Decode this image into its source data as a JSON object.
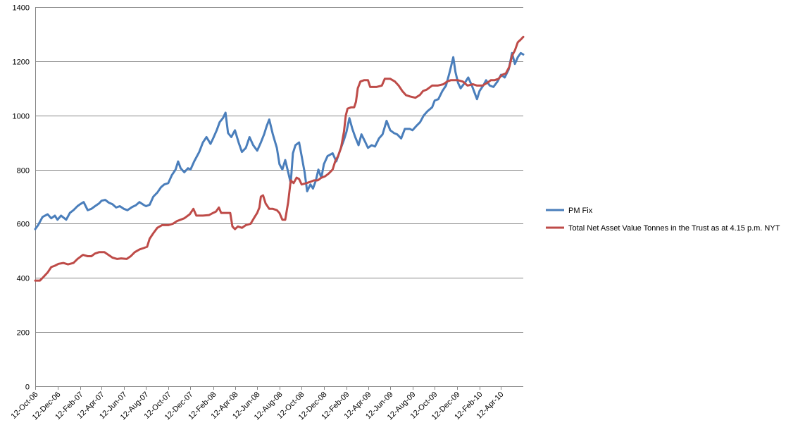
{
  "chart_data": {
    "type": "line",
    "title": "",
    "xlabel": "",
    "ylabel": "",
    "ylim": [
      0,
      1400
    ],
    "yticks": [
      0,
      200,
      400,
      600,
      800,
      1000,
      1200,
      1400
    ],
    "xlim": [
      "2006-10-12",
      "2010-06-12"
    ],
    "xticks": [
      "2006-10-12",
      "2006-12-12",
      "2007-02-12",
      "2007-04-12",
      "2007-06-12",
      "2007-08-12",
      "2007-10-12",
      "2007-12-12",
      "2008-02-12",
      "2008-04-12",
      "2008-06-12",
      "2008-08-12",
      "2008-10-12",
      "2008-12-12",
      "2009-02-12",
      "2009-04-12",
      "2009-06-12",
      "2009-08-12",
      "2009-10-12",
      "2009-12-12",
      "2010-02-12",
      "2010-04-12"
    ],
    "xtick_labels": [
      "12-Oct-06",
      "12-Dec-06",
      "12-Feb-07",
      "12-Apr-07",
      "12-Jun-07",
      "12-Aug-07",
      "12-Oct-07",
      "12-Dec-07",
      "12-Feb-08",
      "12-Apr-08",
      "12-Jun-08",
      "12-Aug-08",
      "12-Oct-08",
      "12-Dec-08",
      "12-Feb-09",
      "12-Apr-09",
      "12-Jun-09",
      "12-Aug-09",
      "12-Oct-09",
      "12-Dec-09",
      "12-Feb-10",
      "12-Apr-10"
    ],
    "grid": "horizontal",
    "legend": "right",
    "series": [
      {
        "name": "PM Fix",
        "color": "#4a7ebb",
        "points": [
          [
            "2006-10-12",
            580
          ],
          [
            "2006-10-20",
            595
          ],
          [
            "2006-11-01",
            625
          ],
          [
            "2006-11-15",
            635
          ],
          [
            "2006-11-25",
            620
          ],
          [
            "2006-12-05",
            630
          ],
          [
            "2006-12-12",
            615
          ],
          [
            "2006-12-22",
            630
          ],
          [
            "2007-01-05",
            615
          ],
          [
            "2007-01-15",
            640
          ],
          [
            "2007-01-25",
            650
          ],
          [
            "2007-02-05",
            665
          ],
          [
            "2007-02-12",
            672
          ],
          [
            "2007-02-22",
            680
          ],
          [
            "2007-03-05",
            650
          ],
          [
            "2007-03-15",
            655
          ],
          [
            "2007-03-25",
            665
          ],
          [
            "2007-04-05",
            675
          ],
          [
            "2007-04-12",
            685
          ],
          [
            "2007-04-22",
            688
          ],
          [
            "2007-05-02",
            678
          ],
          [
            "2007-05-12",
            672
          ],
          [
            "2007-05-22",
            660
          ],
          [
            "2007-06-01",
            665
          ],
          [
            "2007-06-12",
            655
          ],
          [
            "2007-06-22",
            650
          ],
          [
            "2007-07-05",
            662
          ],
          [
            "2007-07-15",
            668
          ],
          [
            "2007-07-25",
            680
          ],
          [
            "2007-08-05",
            670
          ],
          [
            "2007-08-12",
            665
          ],
          [
            "2007-08-22",
            670
          ],
          [
            "2007-09-01",
            700
          ],
          [
            "2007-09-12",
            715
          ],
          [
            "2007-09-22",
            735
          ],
          [
            "2007-10-01",
            745
          ],
          [
            "2007-10-12",
            750
          ],
          [
            "2007-10-22",
            780
          ],
          [
            "2007-11-01",
            800
          ],
          [
            "2007-11-08",
            830
          ],
          [
            "2007-11-15",
            805
          ],
          [
            "2007-11-25",
            790
          ],
          [
            "2007-12-05",
            805
          ],
          [
            "2007-12-12",
            800
          ],
          [
            "2007-12-22",
            830
          ],
          [
            "2008-01-05",
            865
          ],
          [
            "2008-01-15",
            900
          ],
          [
            "2008-01-25",
            920
          ],
          [
            "2008-02-05",
            895
          ],
          [
            "2008-02-12",
            915
          ],
          [
            "2008-02-22",
            945
          ],
          [
            "2008-03-01",
            975
          ],
          [
            "2008-03-10",
            990
          ],
          [
            "2008-03-17",
            1010
          ],
          [
            "2008-03-24",
            935
          ],
          [
            "2008-04-02",
            920
          ],
          [
            "2008-04-12",
            945
          ],
          [
            "2008-04-22",
            900
          ],
          [
            "2008-05-01",
            865
          ],
          [
            "2008-05-12",
            880
          ],
          [
            "2008-05-22",
            920
          ],
          [
            "2008-06-01",
            890
          ],
          [
            "2008-06-12",
            870
          ],
          [
            "2008-06-22",
            900
          ],
          [
            "2008-07-01",
            930
          ],
          [
            "2008-07-08",
            960
          ],
          [
            "2008-07-15",
            985
          ],
          [
            "2008-07-25",
            930
          ],
          [
            "2008-08-05",
            880
          ],
          [
            "2008-08-12",
            820
          ],
          [
            "2008-08-20",
            800
          ],
          [
            "2008-08-28",
            835
          ],
          [
            "2008-09-05",
            790
          ],
          [
            "2008-09-12",
            750
          ],
          [
            "2008-09-18",
            860
          ],
          [
            "2008-09-25",
            890
          ],
          [
            "2008-10-05",
            900
          ],
          [
            "2008-10-12",
            850
          ],
          [
            "2008-10-20",
            790
          ],
          [
            "2008-10-27",
            720
          ],
          [
            "2008-11-05",
            745
          ],
          [
            "2008-11-12",
            730
          ],
          [
            "2008-11-20",
            760
          ],
          [
            "2008-11-27",
            800
          ],
          [
            "2008-12-05",
            770
          ],
          [
            "2008-12-12",
            820
          ],
          [
            "2008-12-22",
            850
          ],
          [
            "2009-01-05",
            860
          ],
          [
            "2009-01-15",
            830
          ],
          [
            "2009-01-25",
            870
          ],
          [
            "2009-02-05",
            910
          ],
          [
            "2009-02-12",
            940
          ],
          [
            "2009-02-20",
            990
          ],
          [
            "2009-02-28",
            950
          ],
          [
            "2009-03-08",
            920
          ],
          [
            "2009-03-17",
            890
          ],
          [
            "2009-03-25",
            930
          ],
          [
            "2009-04-05",
            900
          ],
          [
            "2009-04-12",
            880
          ],
          [
            "2009-04-22",
            890
          ],
          [
            "2009-05-01",
            885
          ],
          [
            "2009-05-12",
            915
          ],
          [
            "2009-05-22",
            930
          ],
          [
            "2009-06-02",
            980
          ],
          [
            "2009-06-12",
            945
          ],
          [
            "2009-06-22",
            935
          ],
          [
            "2009-07-01",
            930
          ],
          [
            "2009-07-12",
            915
          ],
          [
            "2009-07-22",
            950
          ],
          [
            "2009-08-05",
            950
          ],
          [
            "2009-08-12",
            945
          ],
          [
            "2009-08-22",
            960
          ],
          [
            "2009-09-02",
            975
          ],
          [
            "2009-09-12",
            1000
          ],
          [
            "2009-09-22",
            1015
          ],
          [
            "2009-10-05",
            1030
          ],
          [
            "2009-10-12",
            1055
          ],
          [
            "2009-10-22",
            1060
          ],
          [
            "2009-11-02",
            1090
          ],
          [
            "2009-11-12",
            1110
          ],
          [
            "2009-11-22",
            1160
          ],
          [
            "2009-12-02",
            1215
          ],
          [
            "2009-12-08",
            1160
          ],
          [
            "2009-12-15",
            1120
          ],
          [
            "2009-12-22",
            1100
          ],
          [
            "2010-01-05",
            1125
          ],
          [
            "2010-01-12",
            1140
          ],
          [
            "2010-01-22",
            1110
          ],
          [
            "2010-02-05",
            1060
          ],
          [
            "2010-02-12",
            1090
          ],
          [
            "2010-02-22",
            1110
          ],
          [
            "2010-03-02",
            1130
          ],
          [
            "2010-03-12",
            1110
          ],
          [
            "2010-03-22",
            1105
          ],
          [
            "2010-04-02",
            1125
          ],
          [
            "2010-04-12",
            1150
          ],
          [
            "2010-04-22",
            1140
          ],
          [
            "2010-05-03",
            1170
          ],
          [
            "2010-05-12",
            1230
          ],
          [
            "2010-05-20",
            1190
          ],
          [
            "2010-05-28",
            1215
          ],
          [
            "2010-06-05",
            1230
          ],
          [
            "2010-06-12",
            1225
          ]
        ]
      },
      {
        "name": "Total Net Asset Value Tonnes in the Trust as at 4.15 p.m. NYT",
        "color": "#be4b48",
        "points": [
          [
            "2006-10-12",
            390
          ],
          [
            "2006-10-25",
            390
          ],
          [
            "2006-11-01",
            400
          ],
          [
            "2006-11-15",
            420
          ],
          [
            "2006-11-25",
            440
          ],
          [
            "2006-12-05",
            445
          ],
          [
            "2006-12-15",
            452
          ],
          [
            "2006-12-28",
            455
          ],
          [
            "2007-01-10",
            450
          ],
          [
            "2007-01-25",
            455
          ],
          [
            "2007-02-05",
            470
          ],
          [
            "2007-02-20",
            485
          ],
          [
            "2007-03-05",
            480
          ],
          [
            "2007-03-15",
            480
          ],
          [
            "2007-03-25",
            490
          ],
          [
            "2007-04-05",
            495
          ],
          [
            "2007-04-20",
            495
          ],
          [
            "2007-05-01",
            485
          ],
          [
            "2007-05-12",
            475
          ],
          [
            "2007-05-25",
            470
          ],
          [
            "2007-06-05",
            472
          ],
          [
            "2007-06-20",
            470
          ],
          [
            "2007-07-01",
            480
          ],
          [
            "2007-07-12",
            495
          ],
          [
            "2007-07-25",
            505
          ],
          [
            "2007-08-05",
            510
          ],
          [
            "2007-08-15",
            515
          ],
          [
            "2007-08-22",
            545
          ],
          [
            "2007-09-01",
            565
          ],
          [
            "2007-09-12",
            585
          ],
          [
            "2007-09-25",
            595
          ],
          [
            "2007-10-12",
            595
          ],
          [
            "2007-10-25",
            600
          ],
          [
            "2007-11-05",
            610
          ],
          [
            "2007-11-15",
            615
          ],
          [
            "2007-11-25",
            620
          ],
          [
            "2007-12-10",
            635
          ],
          [
            "2007-12-20",
            655
          ],
          [
            "2007-12-28",
            630
          ],
          [
            "2008-01-15",
            630
          ],
          [
            "2008-02-01",
            632
          ],
          [
            "2008-02-12",
            640
          ],
          [
            "2008-02-20",
            645
          ],
          [
            "2008-02-28",
            660
          ],
          [
            "2008-03-05",
            640
          ],
          [
            "2008-03-20",
            640
          ],
          [
            "2008-03-30",
            640
          ],
          [
            "2008-04-05",
            590
          ],
          [
            "2008-04-12",
            580
          ],
          [
            "2008-04-20",
            590
          ],
          [
            "2008-05-01",
            585
          ],
          [
            "2008-05-12",
            595
          ],
          [
            "2008-05-25",
            600
          ],
          [
            "2008-06-05",
            625
          ],
          [
            "2008-06-12",
            640
          ],
          [
            "2008-06-18",
            660
          ],
          [
            "2008-06-22",
            700
          ],
          [
            "2008-06-28",
            705
          ],
          [
            "2008-07-05",
            675
          ],
          [
            "2008-07-15",
            655
          ],
          [
            "2008-07-25",
            655
          ],
          [
            "2008-08-05",
            650
          ],
          [
            "2008-08-12",
            640
          ],
          [
            "2008-08-20",
            615
          ],
          [
            "2008-08-28",
            615
          ],
          [
            "2008-09-05",
            680
          ],
          [
            "2008-09-12",
            760
          ],
          [
            "2008-09-20",
            750
          ],
          [
            "2008-09-28",
            770
          ],
          [
            "2008-10-05",
            765
          ],
          [
            "2008-10-12",
            745
          ],
          [
            "2008-10-25",
            750
          ],
          [
            "2008-11-05",
            755
          ],
          [
            "2008-11-15",
            760
          ],
          [
            "2008-11-25",
            760
          ],
          [
            "2008-12-05",
            770
          ],
          [
            "2008-12-15",
            775
          ],
          [
            "2008-12-25",
            785
          ],
          [
            "2009-01-05",
            800
          ],
          [
            "2009-01-12",
            830
          ],
          [
            "2009-01-20",
            850
          ],
          [
            "2009-01-28",
            880
          ],
          [
            "2009-02-05",
            940
          ],
          [
            "2009-02-10",
            1000
          ],
          [
            "2009-02-15",
            1025
          ],
          [
            "2009-02-25",
            1030
          ],
          [
            "2009-03-05",
            1030
          ],
          [
            "2009-03-10",
            1050
          ],
          [
            "2009-03-15",
            1100
          ],
          [
            "2009-03-22",
            1125
          ],
          [
            "2009-04-01",
            1130
          ],
          [
            "2009-04-12",
            1130
          ],
          [
            "2009-04-18",
            1105
          ],
          [
            "2009-05-05",
            1105
          ],
          [
            "2009-05-20",
            1110
          ],
          [
            "2009-05-28",
            1135
          ],
          [
            "2009-06-12",
            1135
          ],
          [
            "2009-06-25",
            1125
          ],
          [
            "2009-07-05",
            1110
          ],
          [
            "2009-07-15",
            1090
          ],
          [
            "2009-07-25",
            1075
          ],
          [
            "2009-08-05",
            1070
          ],
          [
            "2009-08-20",
            1065
          ],
          [
            "2009-09-01",
            1075
          ],
          [
            "2009-09-10",
            1090
          ],
          [
            "2009-09-20",
            1095
          ],
          [
            "2009-10-05",
            1110
          ],
          [
            "2009-10-20",
            1110
          ],
          [
            "2009-11-05",
            1115
          ],
          [
            "2009-11-15",
            1125
          ],
          [
            "2009-11-25",
            1130
          ],
          [
            "2009-12-05",
            1130
          ],
          [
            "2009-12-15",
            1130
          ],
          [
            "2009-12-28",
            1125
          ],
          [
            "2010-01-10",
            1110
          ],
          [
            "2010-01-25",
            1115
          ],
          [
            "2010-02-05",
            1110
          ],
          [
            "2010-02-20",
            1110
          ],
          [
            "2010-03-05",
            1120
          ],
          [
            "2010-03-15",
            1130
          ],
          [
            "2010-03-25",
            1130
          ],
          [
            "2010-04-05",
            1135
          ],
          [
            "2010-04-15",
            1150
          ],
          [
            "2010-04-25",
            1155
          ],
          [
            "2010-05-05",
            1180
          ],
          [
            "2010-05-12",
            1220
          ],
          [
            "2010-05-20",
            1240
          ],
          [
            "2010-05-28",
            1270
          ],
          [
            "2010-06-05",
            1280
          ],
          [
            "2010-06-12",
            1290
          ]
        ]
      }
    ]
  }
}
